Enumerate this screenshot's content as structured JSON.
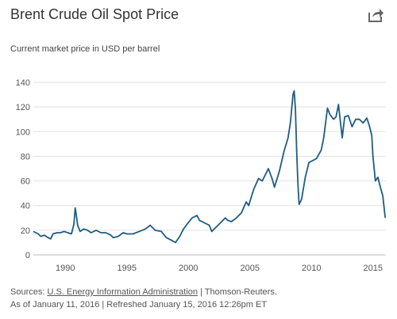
{
  "header": {
    "title": "Brent Crude Oil Spot Price",
    "share_icon": "share-icon"
  },
  "chart_data": {
    "type": "line",
    "title": "Brent Crude Oil Spot Price",
    "subtitle": "Current market price in USD per barrel",
    "xlabel": "",
    "ylabel": "",
    "xlim": [
      1987.4,
      2016.05
    ],
    "ylim": [
      0,
      140
    ],
    "x_ticks": [
      "1990",
      "1995",
      "2000",
      "2005",
      "2010",
      "2015"
    ],
    "y_ticks": [
      "0",
      "20",
      "40",
      "60",
      "80",
      "100",
      "120",
      "140"
    ],
    "grid": "horizontal",
    "line_color": "#1f5d80",
    "series": [
      {
        "x": [
          1987.4,
          1987.6,
          1987.8,
          1988.0,
          1988.3,
          1988.6,
          1988.8,
          1989.0,
          1989.3,
          1989.6,
          1989.9,
          1990.2,
          1990.5,
          1990.7,
          1990.8,
          1990.9,
          1991.0,
          1991.2,
          1991.5,
          1991.8,
          1992.1,
          1992.5,
          1992.9,
          1993.3,
          1993.7,
          1993.9,
          1994.3,
          1994.7,
          1995.0,
          1995.5,
          1996.0,
          1996.5,
          1996.9,
          1997.3,
          1997.8,
          1998.2,
          1998.6,
          1998.95,
          1999.3,
          1999.6,
          1999.9,
          2000.3,
          2000.7,
          2000.9,
          2001.3,
          2001.7,
          2001.9,
          2002.3,
          2002.7,
          2003.0,
          2003.2,
          2003.5,
          2003.9,
          2004.3,
          2004.7,
          2004.9,
          2005.3,
          2005.7,
          2006.0,
          2006.5,
          2006.8,
          2007.0,
          2007.4,
          2007.8,
          2008.1,
          2008.3,
          2008.5,
          2008.6,
          2008.7,
          2008.8,
          2008.9,
          2009.0,
          2009.2,
          2009.5,
          2009.8,
          2010.0,
          2010.4,
          2010.8,
          2011.0,
          2011.3,
          2011.5,
          2011.8,
          2012.0,
          2012.2,
          2012.5,
          2012.7,
          2013.0,
          2013.3,
          2013.6,
          2013.9,
          2014.2,
          2014.5,
          2014.7,
          2014.9,
          2015.0,
          2015.2,
          2015.4,
          2015.6,
          2015.8,
          2016.0
        ],
        "values": [
          19,
          18,
          17,
          15,
          16,
          14,
          13,
          17,
          18,
          18,
          19,
          18,
          17,
          25,
          38,
          32,
          24,
          19,
          21,
          20,
          18,
          20,
          18,
          18,
          16,
          14,
          15,
          18,
          17,
          17,
          19,
          21,
          24,
          20,
          19,
          14,
          12,
          10,
          15,
          21,
          25,
          30,
          32,
          28,
          26,
          24,
          19,
          23,
          27,
          30,
          28,
          27,
          30,
          34,
          43,
          40,
          53,
          62,
          60,
          70,
          62,
          55,
          68,
          85,
          95,
          108,
          130,
          133,
          118,
          85,
          58,
          41,
          45,
          63,
          75,
          76,
          78,
          85,
          95,
          119,
          114,
          110,
          112,
          122,
          95,
          112,
          113,
          104,
          110,
          110,
          107,
          111,
          105,
          97,
          80,
          60,
          63,
          55,
          48,
          30
        ]
      }
    ]
  },
  "footer": {
    "sources_label": "Sources:",
    "source_link": "U.S. Energy Information Administration",
    "source_sep": " | Thomson-Reuters.",
    "asof_line": "As of January 11, 2016 | Refreshed January 15, 2016 12:26pm ET"
  }
}
